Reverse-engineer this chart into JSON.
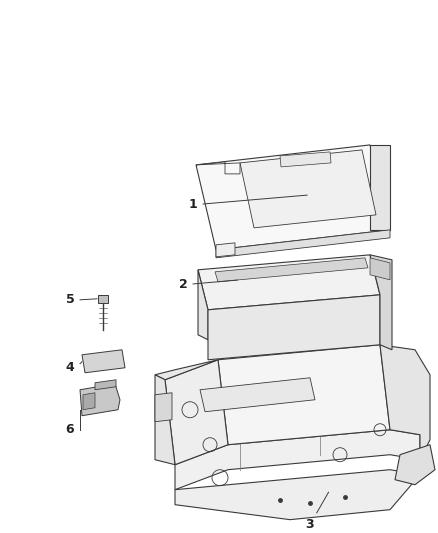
{
  "background_color": "#ffffff",
  "line_color": "#3a3a3a",
  "label_color": "#222222",
  "fig_width": 4.38,
  "fig_height": 5.33,
  "dpi": 100,
  "lw": 0.8
}
